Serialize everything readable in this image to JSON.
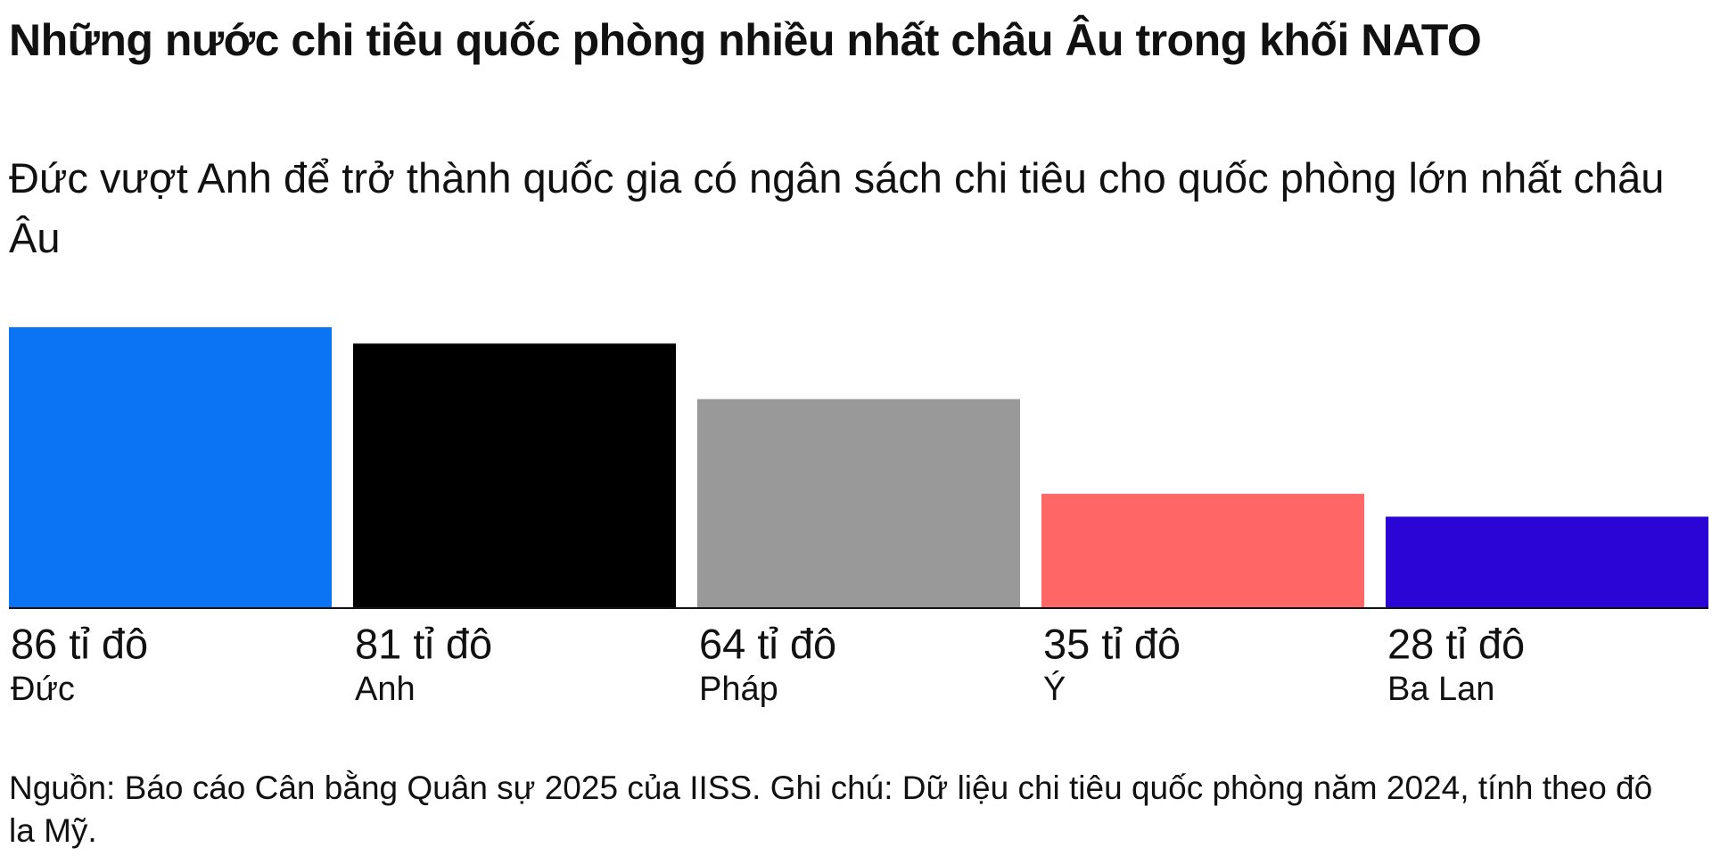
{
  "chart_data": {
    "type": "bar",
    "title": "Những nước chi tiêu quốc phòng nhiều nhất châu Âu trong khối NATO",
    "subtitle": "Đức vượt Anh để trở thành quốc gia có ngân sách chi tiêu cho quốc phòng lớn nhất châu Âu",
    "categories": [
      "Đức",
      "Anh",
      "Pháp",
      "Ý",
      "Ba Lan"
    ],
    "values": [
      86,
      81,
      64,
      35,
      28
    ],
    "value_labels": [
      "86 tỉ đô",
      "81 tỉ đô",
      "64 tỉ đô",
      "35 tỉ đô",
      "28 tỉ đô"
    ],
    "colors": [
      "#0a74f5",
      "#000000",
      "#999999",
      "#ff6666",
      "#2a05d6"
    ],
    "note": "Nguồn: Báo cáo Cân bằng Quân sự 2025 của IISS. Ghi chú: Dữ liệu chi tiêu quốc phòng năm 2024, tính theo đô la Mỹ."
  }
}
